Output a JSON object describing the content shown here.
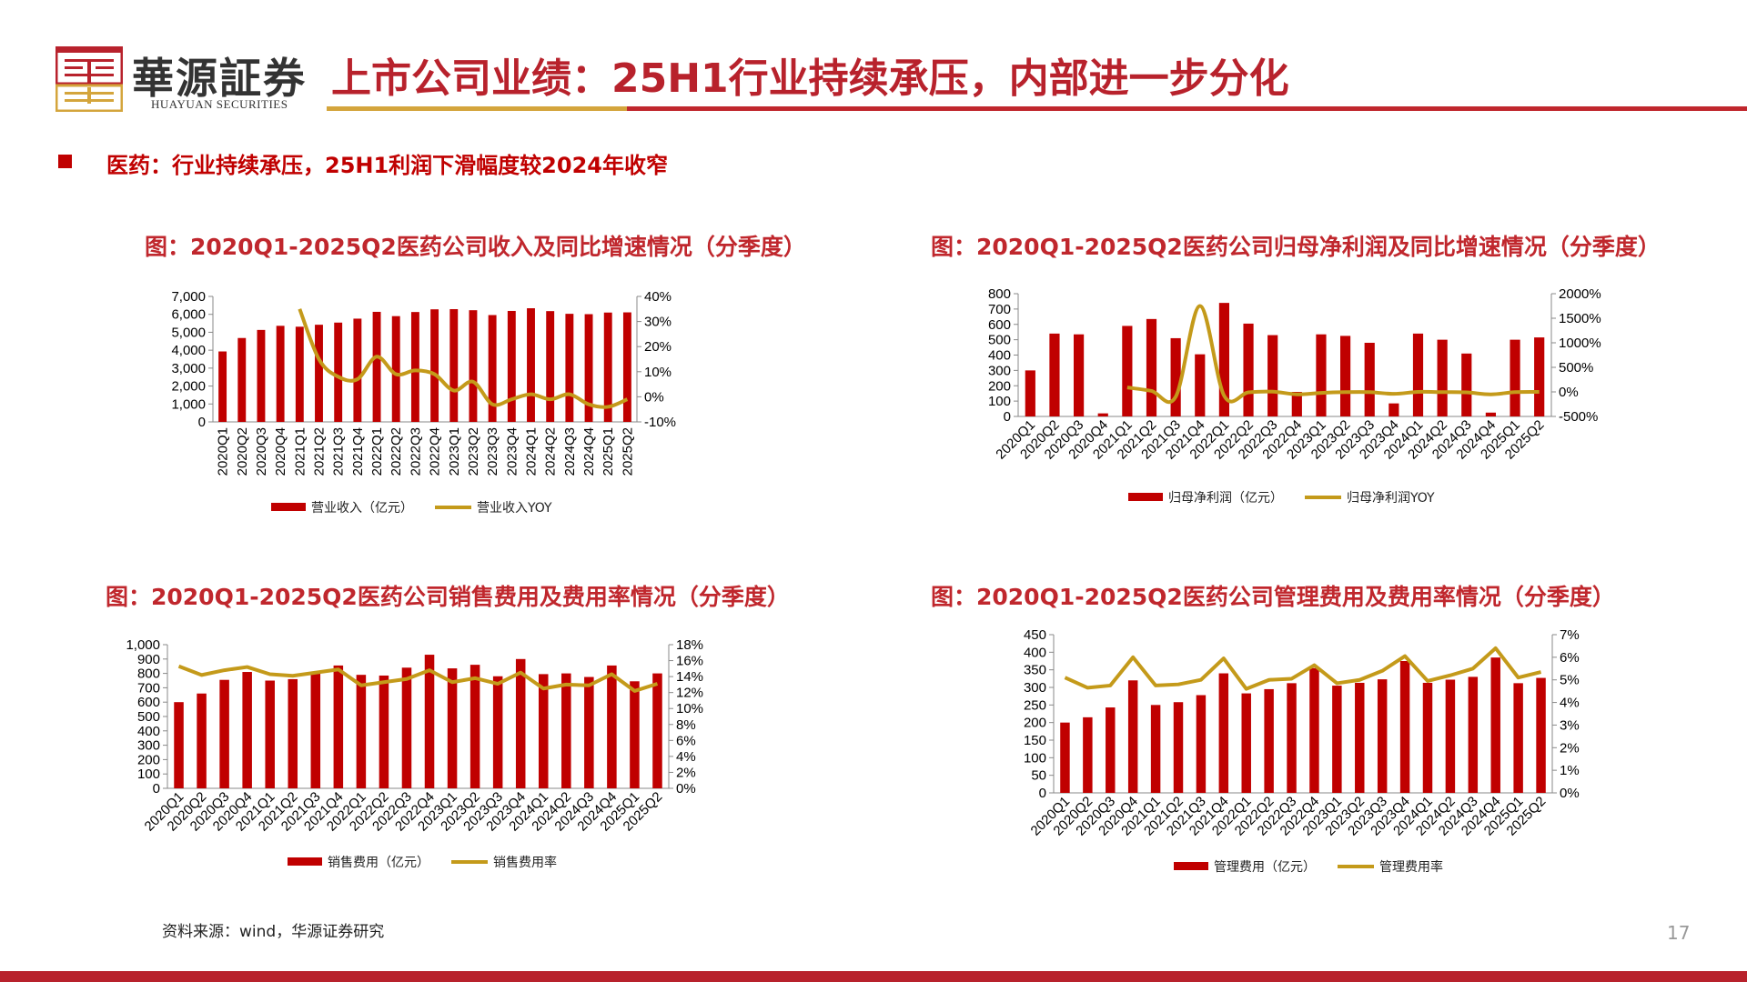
{
  "header": {
    "logo_text": "華源証券",
    "logo_subtext": "HUAYUAN SECURITIES",
    "title": "上市公司业绩：25H1行业持续承压，内部进一步分化"
  },
  "subtitle": "医药：行业持续承压，25H1利润下滑幅度较2024年收窄",
  "footer": {
    "source": "资料来源：wind，华源证券研究",
    "page_number": "17"
  },
  "colors": {
    "bar": "#c00000",
    "line": "#c49a1a",
    "accent_red": "#b8222c",
    "accent_gold": "#d4a53c"
  },
  "chart_data": [
    {
      "type": "bar+line",
      "title": "图：2020Q1-2025Q2医药公司收入及同比增速情况（分季度）",
      "categories": [
        "2020Q1",
        "2020Q2",
        "2020Q3",
        "2020Q4",
        "2021Q1",
        "2021Q2",
        "2021Q3",
        "2021Q4",
        "2022Q1",
        "2022Q2",
        "2022Q3",
        "2022Q4",
        "2023Q1",
        "2023Q2",
        "2023Q3",
        "2023Q4",
        "2024Q1",
        "2024Q2",
        "2024Q3",
        "2024Q4",
        "2025Q1",
        "2025Q2"
      ],
      "series": [
        {
          "name": "营业收入（亿元）",
          "kind": "bar",
          "axis": "left",
          "values": [
            3930,
            4680,
            5130,
            5360,
            5310,
            5420,
            5540,
            5760,
            6140,
            5900,
            6130,
            6280,
            6290,
            6230,
            5960,
            6190,
            6340,
            6180,
            6030,
            6010,
            6100,
            6110
          ]
        },
        {
          "name": "营业收入YOY",
          "kind": "line",
          "smooth": true,
          "axis": "right",
          "values": [
            null,
            null,
            null,
            null,
            35,
            15,
            8,
            7,
            16,
            9,
            10.5,
            9,
            2.5,
            6,
            -3,
            -1,
            1,
            -1,
            1,
            -3,
            -4,
            -1
          ]
        }
      ],
      "ylim_left": [
        0,
        7000
      ],
      "yticks_left": [
        "0",
        "1,000",
        "2,000",
        "3,000",
        "4,000",
        "5,000",
        "6,000",
        "7,000"
      ],
      "ylim_right": [
        -10,
        40
      ],
      "yticks_right": [
        "-10%",
        "0%",
        "10%",
        "20%",
        "30%",
        "40%"
      ],
      "legend": "bottom"
    },
    {
      "type": "bar+line",
      "title": "图：2020Q1-2025Q2医药公司归母净利润及同比增速情况（分季度）",
      "categories": [
        "2020Q1",
        "2020Q2",
        "2020Q3",
        "2020Q4",
        "2021Q1",
        "2021Q2",
        "2021Q3",
        "2021Q4",
        "2022Q1",
        "2022Q2",
        "2022Q3",
        "2022Q4",
        "2023Q1",
        "2023Q2",
        "2023Q3",
        "2023Q4",
        "2024Q1",
        "2024Q2",
        "2024Q3",
        "2024Q4",
        "2025Q1",
        "2025Q2"
      ],
      "series": [
        {
          "name": "归母净利润（亿元）",
          "kind": "bar",
          "axis": "left",
          "values": [
            300,
            540,
            535,
            20,
            590,
            635,
            510,
            405,
            740,
            605,
            530,
            160,
            535,
            525,
            480,
            85,
            540,
            500,
            410,
            25,
            500,
            515
          ]
        },
        {
          "name": "归母净利润YOY",
          "kind": "line",
          "smooth": true,
          "axis": "right",
          "values": [
            null,
            null,
            null,
            null,
            90,
            20,
            -100,
            1750,
            -80,
            -10,
            5,
            -50,
            -20,
            -5,
            -5,
            -40,
            0,
            -5,
            -10,
            -50,
            -5,
            0
          ]
        }
      ],
      "ylim_left": [
        0,
        800
      ],
      "yticks_left": [
        "0",
        "100",
        "200",
        "300",
        "400",
        "500",
        "600",
        "700",
        "800"
      ],
      "ylim_right": [
        -500,
        2000
      ],
      "yticks_right": [
        "-500%",
        "0%",
        "500%",
        "1000%",
        "1500%",
        "2000%"
      ],
      "legend": "bottom"
    },
    {
      "type": "bar+line",
      "title": "图：2020Q1-2025Q2医药公司销售费用及费用率情况（分季度）",
      "categories": [
        "2020Q1",
        "2020Q2",
        "2020Q3",
        "2020Q4",
        "2021Q1",
        "2021Q2",
        "2021Q3",
        "2021Q4",
        "2022Q1",
        "2022Q2",
        "2022Q3",
        "2022Q4",
        "2023Q1",
        "2023Q2",
        "2023Q3",
        "2023Q4",
        "2024Q1",
        "2024Q2",
        "2024Q3",
        "2024Q4",
        "2025Q1",
        "2025Q2"
      ],
      "series": [
        {
          "name": "销售费用（亿元）",
          "kind": "bar",
          "axis": "left",
          "values": [
            600,
            660,
            755,
            810,
            750,
            760,
            800,
            855,
            790,
            785,
            840,
            930,
            835,
            860,
            780,
            900,
            795,
            800,
            775,
            855,
            745,
            800
          ]
        },
        {
          "name": "销售费用率",
          "kind": "line",
          "smooth": false,
          "axis": "right",
          "values": [
            15.3,
            14.2,
            14.8,
            15.2,
            14.3,
            14.1,
            14.5,
            14.9,
            12.9,
            13.3,
            13.7,
            14.8,
            13.3,
            13.8,
            13.1,
            14.5,
            12.5,
            13.0,
            12.9,
            14.3,
            12.2,
            13.1
          ]
        }
      ],
      "ylim_left": [
        0,
        1000
      ],
      "yticks_left": [
        "0",
        "100",
        "200",
        "300",
        "400",
        "500",
        "600",
        "700",
        "800",
        "900",
        "1,000"
      ],
      "ylim_right": [
        0,
        18
      ],
      "yticks_right": [
        "0%",
        "2%",
        "4%",
        "6%",
        "8%",
        "10%",
        "12%",
        "14%",
        "16%",
        "18%"
      ],
      "legend": "bottom"
    },
    {
      "type": "bar+line",
      "title": "图：2020Q1-2025Q2医药公司管理费用及费用率情况（分季度）",
      "categories": [
        "2020Q1",
        "2020Q2",
        "2020Q3",
        "2020Q4",
        "2021Q1",
        "2021Q2",
        "2021Q3",
        "2021Q4",
        "2022Q1",
        "2022Q2",
        "2022Q3",
        "2022Q4",
        "2023Q1",
        "2023Q2",
        "2023Q3",
        "2023Q4",
        "2024Q1",
        "2024Q2",
        "2024Q3",
        "2024Q4",
        "2025Q1",
        "2025Q2"
      ],
      "series": [
        {
          "name": "管理费用（亿元）",
          "kind": "bar",
          "axis": "left",
          "values": [
            200,
            215,
            243,
            320,
            250,
            258,
            278,
            340,
            283,
            295,
            312,
            355,
            305,
            313,
            323,
            375,
            313,
            322,
            330,
            385,
            312,
            327
          ]
        },
        {
          "name": "管理费用率",
          "kind": "line",
          "smooth": false,
          "axis": "right",
          "values": [
            5.1,
            4.65,
            4.75,
            6.0,
            4.75,
            4.8,
            5.0,
            5.95,
            4.6,
            5.0,
            5.05,
            5.65,
            4.85,
            5.0,
            5.4,
            6.05,
            4.95,
            5.2,
            5.5,
            6.4,
            5.1,
            5.35
          ]
        }
      ],
      "ylim_left": [
        0,
        450
      ],
      "yticks_left": [
        "0",
        "50",
        "100",
        "150",
        "200",
        "250",
        "300",
        "350",
        "400",
        "450"
      ],
      "ylim_right": [
        0,
        7
      ],
      "yticks_right": [
        "0%",
        "1%",
        "2%",
        "3%",
        "4%",
        "5%",
        "6%",
        "7%"
      ],
      "legend": "bottom"
    }
  ]
}
